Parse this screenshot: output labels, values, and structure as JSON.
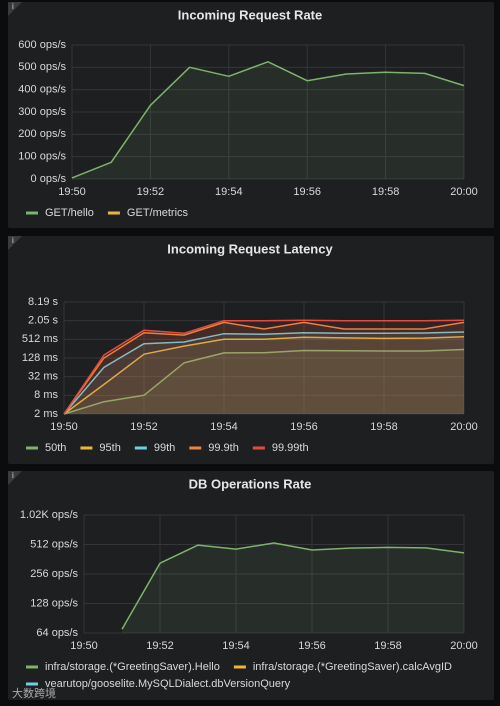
{
  "chart_data": [
    {
      "type": "line",
      "title": "Incoming Request Rate",
      "categories": [
        "19:50",
        null,
        "19:52",
        null,
        "19:54",
        null,
        "19:56",
        null,
        "19:58",
        null,
        "20:00"
      ],
      "series": [
        {
          "name": "GET/hello",
          "color": "#7eb26d",
          "values": [
            5,
            75,
            330,
            500,
            460,
            525,
            440,
            470,
            478,
            473,
            418
          ]
        },
        {
          "name": "GET/metrics",
          "color": "#eab839",
          "values": [
            null,
            null,
            null,
            null,
            null,
            null,
            null,
            null,
            null,
            null,
            null
          ]
        }
      ],
      "ylim": [
        0,
        600
      ],
      "yticks": [
        {
          "value": 0,
          "label": "0 ops/s"
        },
        {
          "value": 100,
          "label": "100 ops/s"
        },
        {
          "value": 200,
          "label": "200 ops/s"
        },
        {
          "value": 300,
          "label": "300 ops/s"
        },
        {
          "value": 400,
          "label": "400 ops/s"
        },
        {
          "value": 500,
          "label": "500 ops/s"
        },
        {
          "value": 600,
          "label": "600 ops/s"
        }
      ],
      "log_scale": false,
      "grid": true,
      "legend": "bottom"
    },
    {
      "type": "line",
      "title": "Incoming Request Latency",
      "categories": [
        "19:50",
        null,
        "19:52",
        null,
        "19:54",
        null,
        "19:56",
        null,
        "19:58",
        null,
        "20:00"
      ],
      "series": [
        {
          "name": "50th",
          "color": "#7eb26d",
          "values": [
            2,
            5,
            8,
            89,
            187,
            190,
            223,
            220,
            215,
            215,
            240
          ]
        },
        {
          "name": "95th",
          "color": "#eab839",
          "values": [
            2,
            18,
            170,
            310,
            512,
            512,
            600,
            570,
            550,
            560,
            620
          ]
        },
        {
          "name": "99th",
          "color": "#6ed0e0",
          "values": [
            2,
            64,
            370,
            420,
            780,
            750,
            830,
            800,
            800,
            820,
            880
          ]
        },
        {
          "name": "99.9th",
          "color": "#ef843c",
          "values": [
            2,
            128,
            830,
            700,
            1800,
            1100,
            1800,
            1100,
            1100,
            1100,
            1800
          ]
        },
        {
          "name": "99.99th",
          "color": "#e24d42",
          "values": [
            2,
            160,
            1000,
            800,
            2048,
            2048,
            2100,
            2048,
            2048,
            2048,
            2100
          ]
        }
      ],
      "ylim": [
        2,
        8192
      ],
      "yticks": [
        {
          "value": 2,
          "label": "2 ms"
        },
        {
          "value": 8,
          "label": "8 ms"
        },
        {
          "value": 32,
          "label": "32 ms"
        },
        {
          "value": 128,
          "label": "128 ms"
        },
        {
          "value": 512,
          "label": "512 ms"
        },
        {
          "value": 2048,
          "label": "2.05 s"
        },
        {
          "value": 8192,
          "label": "8.19 s"
        }
      ],
      "log_scale": true,
      "grid": true,
      "legend": "bottom"
    },
    {
      "type": "line",
      "title": "DB Operations Rate",
      "categories": [
        "19:50",
        null,
        "19:52",
        null,
        "19:54",
        null,
        "19:56",
        null,
        "19:58",
        null,
        "20:00"
      ],
      "series": [
        {
          "name": "infra/storage.(*GreetingSaver).Hello",
          "color": "#7eb26d",
          "values": [
            null,
            70,
            330,
            505,
            460,
            530,
            450,
            470,
            478,
            473,
            420
          ]
        },
        {
          "name": "infra/storage.(*GreetingSaver).calcAvgID",
          "color": "#eab839",
          "values": [
            null,
            null,
            null,
            null,
            null,
            null,
            null,
            null,
            null,
            null,
            null
          ]
        },
        {
          "name": "vearutop/gooselite.MySQLDialect.dbVersionQuery",
          "color": "#6ed0e0",
          "values": [
            null,
            null,
            null,
            null,
            null,
            null,
            null,
            null,
            null,
            null,
            null
          ]
        }
      ],
      "ylim": [
        64,
        1024
      ],
      "yticks": [
        {
          "value": 64,
          "label": "64 ops/s"
        },
        {
          "value": 128,
          "label": "128 ops/s"
        },
        {
          "value": 256,
          "label": "256 ops/s"
        },
        {
          "value": 512,
          "label": "512 ops/s"
        },
        {
          "value": 1024,
          "label": "1.02K ops/s"
        }
      ],
      "log_scale": true,
      "grid": true,
      "legend": "bottom"
    }
  ],
  "watermark": "大数跨境"
}
